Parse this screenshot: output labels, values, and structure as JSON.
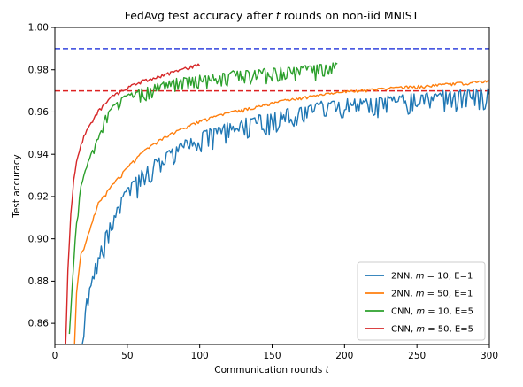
{
  "chart_data": {
    "type": "line",
    "title": "FedAvg test accuracy after t rounds on non-iid MNIST",
    "title_parts": {
      "before": "FedAvg test accuracy after ",
      "var": "t",
      "after": " rounds on non-iid MNIST"
    },
    "xlabel": "Communication rounds t",
    "xlabel_parts": {
      "before": "Communication rounds ",
      "var": "t"
    },
    "ylabel": "Test accuracy",
    "xlim": [
      0,
      300
    ],
    "ylim": [
      0.85,
      1.0
    ],
    "xticks": [
      0,
      50,
      100,
      150,
      200,
      250,
      300
    ],
    "xtick_labels": [
      "0",
      "50",
      "100",
      "150",
      "200",
      "250",
      "300"
    ],
    "yticks": [
      0.86,
      0.88,
      0.9,
      0.92,
      0.94,
      0.96,
      0.98,
      1.0
    ],
    "ytick_labels": [
      "0.86",
      "0.88",
      "0.90",
      "0.92",
      "0.94",
      "0.96",
      "0.98",
      "1.00"
    ],
    "grid": false,
    "legend_position": "bottom-right",
    "reference_lines": [
      {
        "y": 0.99,
        "color": "#3344dd",
        "style": "dashed"
      },
      {
        "y": 0.97,
        "color": "#dd2222",
        "style": "dashed"
      }
    ],
    "series": [
      {
        "name": "2NN, m = 10, E=1",
        "legend": {
          "model": "2NN, ",
          "var": "m",
          "rest": " = 10, E=1"
        },
        "color": "#1f77b4",
        "anchors": [
          [
            18,
            0.845
          ],
          [
            20,
            0.858
          ],
          [
            22,
            0.872
          ],
          [
            25,
            0.88
          ],
          [
            28,
            0.888
          ],
          [
            30,
            0.892
          ],
          [
            35,
            0.903
          ],
          [
            40,
            0.91
          ],
          [
            45,
            0.918
          ],
          [
            50,
            0.924
          ],
          [
            60,
            0.932
          ],
          [
            70,
            0.938
          ],
          [
            80,
            0.943
          ],
          [
            90,
            0.947
          ],
          [
            100,
            0.95
          ],
          [
            120,
            0.955
          ],
          [
            140,
            0.958
          ],
          [
            160,
            0.961
          ],
          [
            180,
            0.964
          ],
          [
            200,
            0.966
          ],
          [
            220,
            0.967
          ],
          [
            240,
            0.968
          ],
          [
            260,
            0.969
          ],
          [
            280,
            0.97
          ],
          [
            300,
            0.971
          ]
        ],
        "noise": 0.01,
        "seed": 11
      },
      {
        "name": "2NN, m = 50, E=1",
        "legend": {
          "model": "2NN, ",
          "var": "m",
          "rest": " = 50, E=1"
        },
        "color": "#ff7f0e",
        "anchors": [
          [
            13,
            0.84
          ],
          [
            15,
            0.875
          ],
          [
            18,
            0.893
          ],
          [
            20,
            0.895
          ],
          [
            25,
            0.907
          ],
          [
            30,
            0.917
          ],
          [
            40,
            0.926
          ],
          [
            50,
            0.934
          ],
          [
            60,
            0.941
          ],
          [
            70,
            0.946
          ],
          [
            80,
            0.95
          ],
          [
            90,
            0.953
          ],
          [
            100,
            0.956
          ],
          [
            120,
            0.96
          ],
          [
            140,
            0.963
          ],
          [
            160,
            0.966
          ],
          [
            180,
            0.968
          ],
          [
            200,
            0.97
          ],
          [
            220,
            0.971
          ],
          [
            240,
            0.972
          ],
          [
            260,
            0.973
          ],
          [
            280,
            0.974
          ],
          [
            300,
            0.975
          ]
        ],
        "noise": 0.0015,
        "seed": 23
      },
      {
        "name": "CNN, m = 10, E=5",
        "legend": {
          "model": "CNN, ",
          "var": "m",
          "rest": " = 10, E=5"
        },
        "color": "#2ca02c",
        "anchors": [
          [
            10,
            0.855
          ],
          [
            12,
            0.878
          ],
          [
            15,
            0.91
          ],
          [
            18,
            0.925
          ],
          [
            20,
            0.93
          ],
          [
            25,
            0.94
          ],
          [
            30,
            0.948
          ],
          [
            35,
            0.958
          ],
          [
            40,
            0.963
          ],
          [
            45,
            0.966
          ],
          [
            50,
            0.968
          ],
          [
            60,
            0.971
          ],
          [
            70,
            0.973
          ],
          [
            80,
            0.975
          ],
          [
            90,
            0.976
          ],
          [
            100,
            0.977
          ],
          [
            120,
            0.979
          ],
          [
            140,
            0.98
          ],
          [
            160,
            0.981
          ],
          [
            180,
            0.982
          ],
          [
            195,
            0.983
          ]
        ],
        "noise": 0.007,
        "seed": 37
      },
      {
        "name": "CNN, m = 50, E=5",
        "legend": {
          "model": "CNN, ",
          "var": "m",
          "rest": " = 50, E=5"
        },
        "color": "#d62728",
        "anchors": [
          [
            7,
            0.84
          ],
          [
            9,
            0.885
          ],
          [
            11,
            0.912
          ],
          [
            13,
            0.928
          ],
          [
            15,
            0.937
          ],
          [
            18,
            0.945
          ],
          [
            20,
            0.949
          ],
          [
            25,
            0.955
          ],
          [
            30,
            0.961
          ],
          [
            40,
            0.968
          ],
          [
            50,
            0.972
          ],
          [
            60,
            0.975
          ],
          [
            70,
            0.977
          ],
          [
            80,
            0.979
          ],
          [
            90,
            0.981
          ],
          [
            100,
            0.983
          ]
        ],
        "noise": 0.0015,
        "seed": 51
      }
    ]
  }
}
